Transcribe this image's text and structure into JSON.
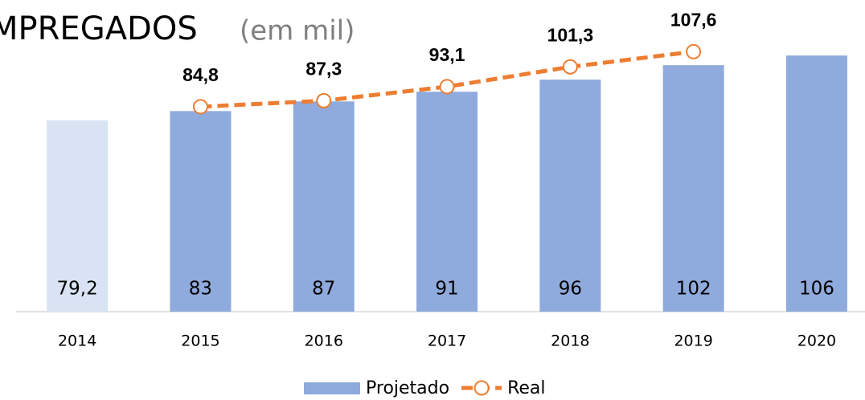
{
  "chart_data": {
    "type": "bar",
    "title": "MPREGADOS",
    "subtitle": "(em mil)",
    "categories": [
      "2014",
      "2015",
      "2016",
      "2017",
      "2018",
      "2019",
      "2020"
    ],
    "ylim": [
      0,
      120
    ],
    "series": [
      {
        "name": "Projetado",
        "type": "bar",
        "color": "#8faadc",
        "colors": [
          "#dae3f3",
          "#8faadc",
          "#8faadc",
          "#8faadc",
          "#8faadc",
          "#8faadc",
          "#8faadc"
        ],
        "values": [
          79.2,
          83,
          87,
          91,
          96,
          102,
          106
        ],
        "value_labels": [
          "79,2",
          "83",
          "87",
          "91",
          "96",
          "102",
          "106"
        ]
      },
      {
        "name": "Real",
        "type": "line",
        "color": "#ed7d31",
        "values": [
          null,
          84.8,
          87.3,
          93.1,
          101.3,
          107.6,
          null
        ],
        "value_labels": [
          null,
          "84,8",
          "87,3",
          "93,1",
          "101,3",
          "107,6",
          null
        ]
      }
    ]
  }
}
